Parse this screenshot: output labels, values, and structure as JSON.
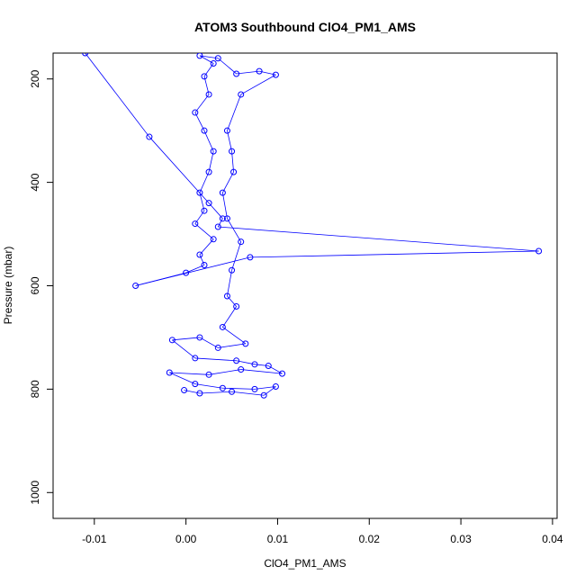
{
  "chart_data": {
    "type": "line",
    "title": "ATOM3 Southbound ClO4_PM1_AMS",
    "xlabel": "ClO4_PM1_AMS",
    "ylabel": "Pressure (mbar)",
    "xlim": [
      -0.0145,
      0.0405
    ],
    "ylim": [
      1050,
      150
    ],
    "y_reversed": true,
    "grid": false,
    "x_ticks": [
      -0.01,
      0.0,
      0.01,
      0.02,
      0.03,
      0.04
    ],
    "x_tick_labels": [
      "-0.01",
      "0.00",
      "0.01",
      "0.02",
      "0.03",
      "0.04"
    ],
    "y_ticks": [
      200,
      400,
      600,
      800,
      1000
    ],
    "y_tick_labels": [
      "200",
      "400",
      "600",
      "800",
      "1000"
    ],
    "series": [
      {
        "color": "#0000ff",
        "marker": "open-circle",
        "points": [
          [
            -0.011,
            150
          ],
          [
            -0.004,
            312
          ],
          [
            0.0025,
            440
          ],
          [
            0.004,
            470
          ],
          [
            0.0035,
            486
          ],
          [
            0.0385,
            533
          ],
          [
            0.007,
            545
          ],
          [
            -0.0055,
            600
          ],
          [
            0.0,
            575
          ],
          [
            0.002,
            560
          ],
          [
            0.0015,
            540
          ],
          [
            0.003,
            510
          ],
          [
            0.001,
            480
          ],
          [
            0.002,
            455
          ],
          [
            0.0015,
            420
          ],
          [
            0.0025,
            380
          ],
          [
            0.003,
            340
          ],
          [
            0.002,
            300
          ],
          [
            0.001,
            265
          ],
          [
            0.0025,
            230
          ],
          [
            0.002,
            195
          ],
          [
            0.003,
            170
          ],
          [
            0.0015,
            155
          ],
          [
            0.0035,
            160
          ],
          [
            0.0055,
            190
          ],
          [
            0.008,
            185
          ],
          [
            0.0098,
            192
          ],
          [
            0.006,
            230
          ],
          [
            0.0045,
            300
          ],
          [
            0.005,
            340
          ],
          [
            0.0052,
            380
          ],
          [
            0.004,
            420
          ],
          [
            0.0045,
            470
          ],
          [
            0.006,
            515
          ],
          [
            0.005,
            570
          ],
          [
            0.0045,
            620
          ],
          [
            0.0055,
            640
          ],
          [
            0.004,
            680
          ],
          [
            0.0065,
            712
          ],
          [
            0.0035,
            720
          ],
          [
            0.0015,
            700
          ],
          [
            -0.0015,
            705
          ],
          [
            0.001,
            740
          ],
          [
            0.0055,
            745
          ],
          [
            0.0075,
            752
          ],
          [
            0.009,
            755
          ],
          [
            0.0105,
            770
          ],
          [
            0.006,
            762
          ],
          [
            0.0025,
            772
          ],
          [
            -0.0018,
            768
          ],
          [
            0.001,
            790
          ],
          [
            0.004,
            798
          ],
          [
            0.0075,
            800
          ],
          [
            0.0098,
            795
          ],
          [
            0.0085,
            812
          ],
          [
            0.005,
            805
          ],
          [
            0.0015,
            808
          ],
          [
            -0.0002,
            802
          ]
        ]
      }
    ]
  }
}
